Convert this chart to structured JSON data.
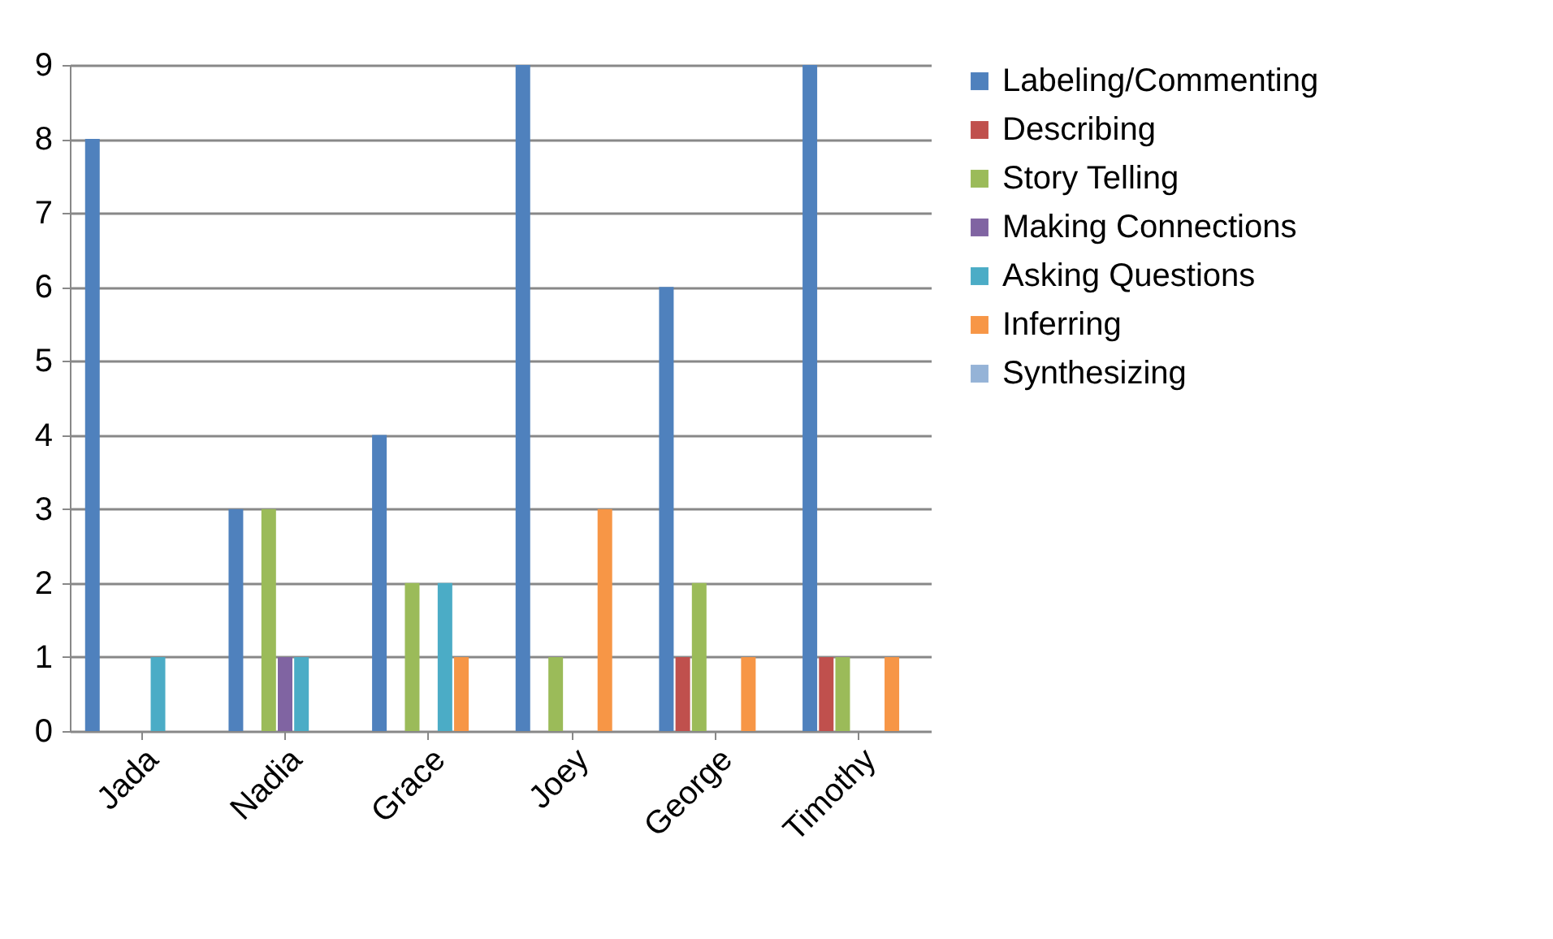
{
  "chart_data": {
    "type": "bar",
    "categories": [
      "Jada",
      "Nadia",
      "Grace",
      "Joey",
      "George",
      "Timothy"
    ],
    "series": [
      {
        "name": "Labeling/Commenting",
        "color": "#4f81bd",
        "values": [
          8,
          3,
          4,
          9,
          6,
          9
        ]
      },
      {
        "name": "Describing",
        "color": "#c0504d",
        "values": [
          0,
          0,
          0,
          0,
          1,
          1
        ]
      },
      {
        "name": "Story Telling",
        "color": "#9bbb59",
        "values": [
          0,
          3,
          2,
          1,
          2,
          1
        ]
      },
      {
        "name": "Making Connections",
        "color": "#8064a2",
        "values": [
          0,
          1,
          0,
          0,
          0,
          0
        ]
      },
      {
        "name": "Asking Questions",
        "color": "#4bacc6",
        "values": [
          1,
          1,
          2,
          0,
          0,
          0
        ]
      },
      {
        "name": "Inferring",
        "color": "#f79646",
        "values": [
          0,
          0,
          1,
          3,
          1,
          1
        ]
      },
      {
        "name": "Synthesizing",
        "color": "#95b3d7",
        "values": [
          0,
          0,
          0,
          0,
          0,
          0
        ]
      }
    ],
    "ylim": [
      0,
      9
    ],
    "yticks": [
      0,
      1,
      2,
      3,
      4,
      5,
      6,
      7,
      8,
      9
    ],
    "grid": "y",
    "legend": "right"
  }
}
